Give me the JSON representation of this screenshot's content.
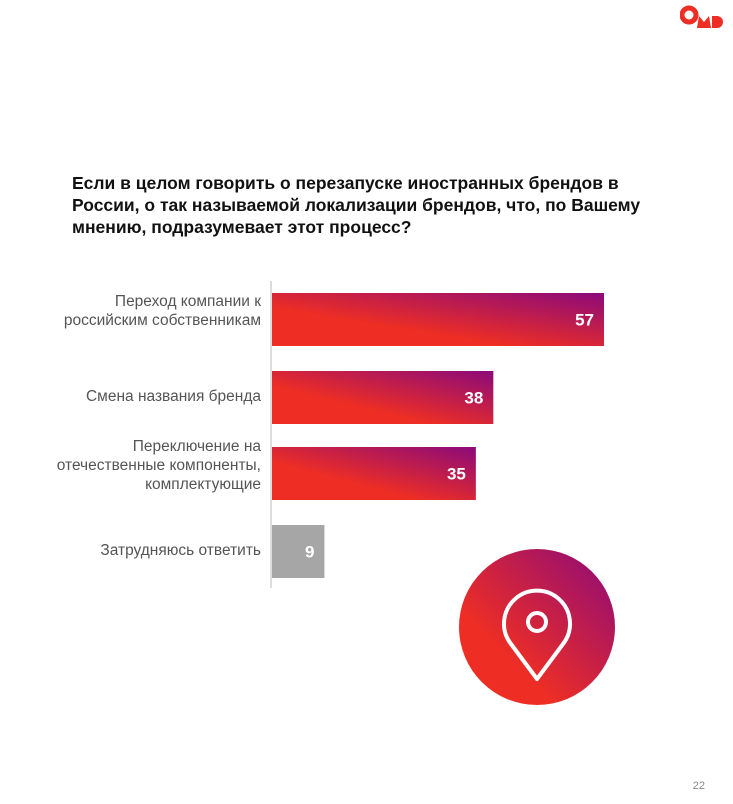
{
  "logo": {
    "text": "OMD",
    "color": "#ee2e24"
  },
  "title": "Если в целом говорить о перезапуске иностранных брендов в России, о так называемой локализации брендов, что, по Вашему мнению, подразумевает этот процесс?",
  "chart_data": {
    "type": "bar",
    "orientation": "horizontal",
    "categories": [
      "Переход компании к российским собственникам",
      "Смена названия бренда",
      "Переключение на отечественные компоненты, комплектующие",
      "Затрудняюсь ответить"
    ],
    "values": [
      57,
      38,
      35,
      9
    ],
    "labels": [
      "57",
      "38",
      "35",
      "9"
    ],
    "colors": [
      "gradient",
      "gradient",
      "gradient",
      "#a6a6a6"
    ],
    "gradient": [
      "#ee2e24",
      "#8b0a7a"
    ],
    "xlim": [
      0,
      60
    ],
    "grid": false
  },
  "icon": "location-pin-icon",
  "page_number": "22"
}
